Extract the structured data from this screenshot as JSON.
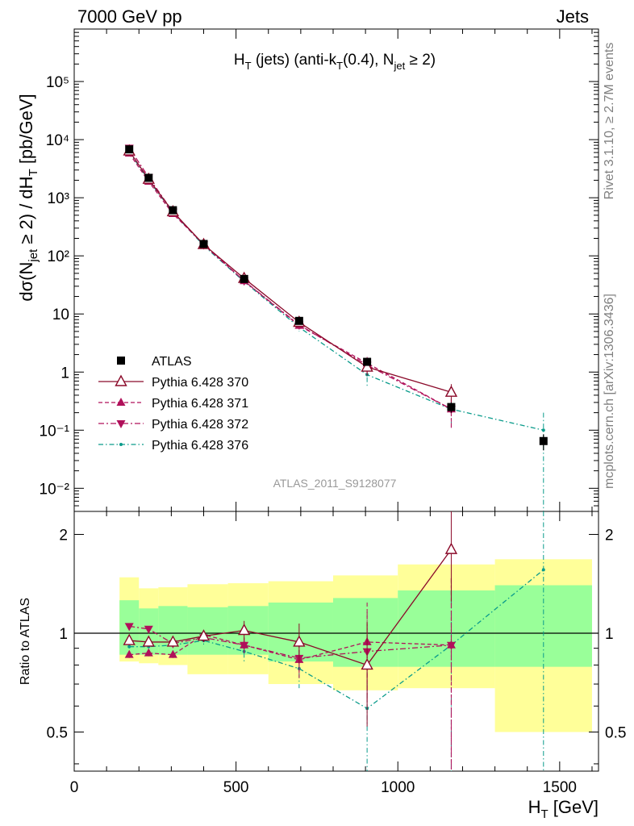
{
  "header": {
    "left": "7000 GeV pp",
    "right": "Jets"
  },
  "side": {
    "upper": "Rivet 3.1.10, ≥ 2.7M events",
    "lower": "mcplots.cern.ch [arXiv:1306.3436]"
  },
  "analysis_id": "ATLAS_2011_S9128077",
  "colors": {
    "data": "#000000",
    "p370": "#8b0a2a",
    "p371": "#b0105a",
    "p372": "#b0105a",
    "p376": "#0a9b8b",
    "band_inner": "#99ff99",
    "band_outer": "#ffff99"
  },
  "chart_data": [
    {
      "type": "scatter",
      "title": "H_T (jets) (anti-k_T(0.4), N_jet ≥ 2)",
      "ylabel": "dσ(N_jet ≥ 2) / dH_T [pb/GeV]",
      "yscale": "log",
      "ylim": [
        0.004,
        800000
      ],
      "xlim": [
        0,
        1620
      ],
      "y_ticklabels": [
        "10⁻²",
        "10⁻¹",
        "1",
        "10",
        "10²",
        "10³",
        "10⁴",
        "10⁵"
      ],
      "legend_position": "lower-left",
      "x": [
        170,
        230,
        305,
        400,
        525,
        695,
        905,
        1165,
        1450
      ],
      "series": [
        {
          "name": "ATLAS",
          "marker": "square",
          "values": [
            6800,
            2200,
            610,
            160,
            40,
            7.6,
            1.5,
            0.25,
            0.065
          ],
          "err": [
            400,
            120,
            35,
            9,
            2.5,
            0.5,
            0.15,
            0.05,
            0.02
          ]
        },
        {
          "name": "Pythia 6.428 370",
          "marker": "open-triangle-up",
          "values": [
            6400,
            2080,
            575,
            157,
            41,
            7.2,
            1.22,
            0.45,
            null
          ],
          "err": [
            250,
            90,
            30,
            8,
            3,
            1.0,
            0.35,
            0.17,
            null
          ]
        },
        {
          "name": "Pythia 6.428 371",
          "marker": "triangle-up",
          "values": [
            5800,
            1900,
            530,
            158,
            37,
            6.3,
            1.42,
            0.23,
            null
          ],
          "err": [
            200,
            80,
            25,
            8,
            3,
            0.9,
            0.4,
            0.12,
            null
          ]
        },
        {
          "name": "Pythia 6.428 372",
          "marker": "triangle-down",
          "values": [
            7200,
            2250,
            570,
            155,
            37,
            6.5,
            1.32,
            0.23,
            null
          ],
          "err": [
            250,
            90,
            28,
            8,
            3,
            0.9,
            0.4,
            0.12,
            null
          ]
        },
        {
          "name": "Pythia 6.428 376",
          "marker": "dot",
          "values": [
            6200,
            2000,
            560,
            150,
            36,
            5.9,
            0.9,
            0.23,
            0.1
          ],
          "err": [
            250,
            90,
            28,
            8,
            3,
            0.9,
            0.35,
            0.1,
            0.1
          ]
        }
      ]
    },
    {
      "type": "line",
      "xlabel": "H_T [GeV]",
      "ylabel": "Ratio to ATLAS",
      "ylim": [
        0.38,
        2.35
      ],
      "xlim": [
        0,
        1620
      ],
      "x_ticklabels": [
        "0",
        "500",
        "1000",
        "1500"
      ],
      "y_ticklabels": [
        "0.5",
        "1",
        "2"
      ],
      "reference_line": 1,
      "bands": [
        {
          "name": "outer",
          "bins": [
            [
              140,
              200,
              0.82,
              1.48
            ],
            [
              200,
              260,
              0.81,
              1.37
            ],
            [
              260,
              350,
              0.8,
              1.38
            ],
            [
              350,
              475,
              0.75,
              1.41
            ],
            [
              475,
              600,
              0.75,
              1.42
            ],
            [
              600,
              800,
              0.7,
              1.44
            ],
            [
              800,
              1000,
              0.67,
              1.5
            ],
            [
              1000,
              1300,
              0.68,
              1.62
            ],
            [
              1300,
              1600,
              0.5,
              1.68
            ]
          ]
        },
        {
          "name": "inner",
          "bins": [
            [
              140,
              200,
              0.86,
              1.26
            ],
            [
              200,
              260,
              0.86,
              1.19
            ],
            [
              260,
              350,
              0.86,
              1.21
            ],
            [
              350,
              475,
              0.86,
              1.2
            ],
            [
              475,
              600,
              0.86,
              1.21
            ],
            [
              600,
              800,
              0.82,
              1.24
            ],
            [
              800,
              1000,
              0.79,
              1.28
            ],
            [
              1000,
              1300,
              0.79,
              1.35
            ],
            [
              1300,
              1600,
              0.79,
              1.4
            ]
          ]
        }
      ],
      "x": [
        170,
        230,
        305,
        400,
        525,
        695,
        905,
        1165,
        1450
      ],
      "series": [
        {
          "name": "Pythia 6.428 370",
          "values": [
            0.95,
            0.94,
            0.94,
            0.98,
            1.02,
            0.94,
            0.8,
            1.8,
            null
          ],
          "err": [
            0.03,
            0.03,
            0.03,
            0.04,
            0.07,
            0.13,
            0.28,
            0.55,
            null
          ]
        },
        {
          "name": "Pythia 6.428 371",
          "values": [
            0.86,
            0.87,
            0.86,
            0.99,
            0.92,
            0.83,
            0.94,
            0.92,
            null
          ],
          "err": [
            0.02,
            0.02,
            0.02,
            0.03,
            0.05,
            0.1,
            0.3,
            0.55,
            null
          ]
        },
        {
          "name": "Pythia 6.428 372",
          "values": [
            1.05,
            1.03,
            0.93,
            0.97,
            0.92,
            0.84,
            0.88,
            0.92,
            null
          ],
          "err": [
            0.02,
            0.02,
            0.02,
            0.03,
            0.05,
            0.1,
            0.28,
            0.55,
            null
          ]
        },
        {
          "name": "Pythia 6.428 376",
          "values": [
            0.91,
            0.91,
            0.92,
            0.95,
            0.88,
            0.78,
            0.59,
            0.92,
            1.56
          ],
          "err": [
            0.02,
            0.02,
            0.02,
            0.03,
            0.06,
            0.1,
            0.3,
            0.55,
            1.2
          ]
        }
      ]
    }
  ]
}
